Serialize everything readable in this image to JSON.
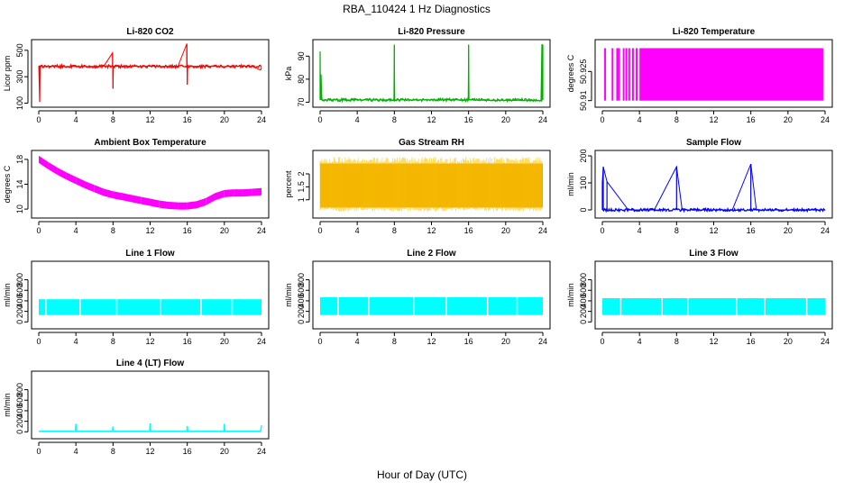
{
  "figure": {
    "title": "RBA_110424  1 Hz Diagnostics",
    "xlabel": "Hour of Day (UTC)"
  },
  "chart_data": [
    {
      "type": "line",
      "title": "Li-820 CO2",
      "ylabel": "Licor ppm",
      "color": "#ff0000",
      "xlim": [
        0,
        24
      ],
      "xticks": [
        0,
        4,
        8,
        12,
        16,
        20,
        24
      ],
      "ylim": [
        90,
        560
      ],
      "yticks": [
        100,
        300,
        500
      ],
      "series": [
        {
          "x": [
            0,
            0.1,
            0.15,
            0.3,
            1,
            2,
            3,
            4,
            5,
            6,
            7,
            7.95,
            8.0,
            8.05,
            8.1,
            9,
            10,
            11,
            12,
            13,
            14,
            15,
            15.95,
            16.0,
            16.05,
            16.1,
            17,
            18,
            19,
            20,
            21,
            22,
            23,
            23.9,
            24
          ],
          "y": [
            380,
            110,
            380,
            375,
            380,
            378,
            376,
            378,
            377,
            379,
            378,
            480,
            210,
            378,
            378,
            380,
            379,
            378,
            380,
            378,
            379,
            380,
            550,
            240,
            378,
            378,
            379,
            380,
            378,
            377,
            379,
            380,
            378,
            350,
            370
          ]
        }
      ]
    },
    {
      "type": "line",
      "title": "Li-820 Pressure",
      "ylabel": "kPa",
      "color": "#00b000",
      "xlim": [
        0,
        24
      ],
      "xticks": [
        0,
        4,
        8,
        12,
        16,
        20,
        24
      ],
      "ylim": [
        69,
        96
      ],
      "yticks": [
        70,
        80,
        90
      ],
      "series": [
        {
          "x": [
            0,
            0.05,
            0.1,
            0.2,
            2,
            4,
            6,
            7.95,
            8.0,
            8.05,
            10,
            12,
            14,
            15.95,
            16.0,
            16.05,
            18,
            20,
            22,
            23.8,
            23.9,
            24
          ],
          "y": [
            92,
            71,
            82,
            71,
            71,
            71,
            71,
            71,
            95,
            71,
            71,
            71,
            71,
            71,
            95,
            71,
            70.8,
            70.8,
            70.7,
            70.7,
            95,
            95
          ]
        }
      ]
    },
    {
      "type": "area",
      "title": "Li-820 Temperature",
      "ylabel": "degrees C",
      "color": "#ff00ff",
      "xlim": [
        0,
        24
      ],
      "xticks": [
        0,
        4,
        8,
        12,
        16,
        20,
        24
      ],
      "ylim": [
        50.908,
        50.94
      ],
      "yticks": [
        50.91,
        50.925
      ],
      "series": [
        {
          "x": [
            0.2,
            1.0,
            1.5,
            1.7,
            2.2,
            2.5,
            2.8,
            3.2,
            3.6,
            4.0
          ],
          "y": [
            50.91,
            50.91,
            50.91,
            50.91,
            50.91,
            50.91,
            50.91,
            50.91,
            50.91,
            50.91
          ]
        }
      ]
    },
    {
      "type": "line",
      "title": "Ambient Box Temperature",
      "ylabel": "degrees C",
      "color": "#ff00ff",
      "xlim": [
        0,
        24
      ],
      "xticks": [
        0,
        4,
        8,
        12,
        16,
        20,
        24
      ],
      "ylim": [
        9,
        19
      ],
      "yticks": [
        10,
        14,
        18
      ],
      "series": [
        {
          "x": [
            0,
            1,
            2,
            3,
            4,
            5,
            6,
            7,
            8,
            9,
            10,
            11,
            12,
            13,
            14,
            15,
            16,
            17,
            18,
            19,
            20,
            21,
            22,
            23,
            24
          ],
          "y": [
            18,
            17,
            16.1,
            15.3,
            14.6,
            13.9,
            13.3,
            12.7,
            12.3,
            12.0,
            11.7,
            11.4,
            11.1,
            10.8,
            10.6,
            10.5,
            10.5,
            10.7,
            11.2,
            12.0,
            12.5,
            12.6,
            12.6,
            12.7,
            12.8
          ]
        }
      ]
    },
    {
      "type": "area",
      "title": "Gas Stream RH",
      "ylabel": "percent",
      "color": "#ffa500",
      "xlim": [
        0,
        24
      ],
      "xticks": [
        0,
        4,
        8,
        12,
        16,
        20,
        24
      ],
      "ylim": [
        0.4,
        2.8
      ],
      "yticks": [
        1.0,
        1.5,
        2.0
      ],
      "series": [
        {
          "x": [
            0,
            4,
            8,
            12,
            16,
            20,
            24
          ],
          "y": [
            2.4,
            2.4,
            2.4,
            2.4,
            2.4,
            2.4,
            2.4
          ]
        }
      ]
    },
    {
      "type": "line",
      "title": "Sample Flow",
      "ylabel": "ml/min",
      "color": "#0000ff",
      "xlim": [
        0,
        24
      ],
      "xticks": [
        0,
        4,
        8,
        12,
        16,
        20,
        24
      ],
      "ylim": [
        -20,
        210
      ],
      "yticks": [
        0,
        100,
        200
      ],
      "series": [
        {
          "x": [
            0,
            0.1,
            0.5,
            2.8,
            4.1,
            5.6,
            8.0,
            8.6,
            10.0,
            11.4,
            12.4,
            14.0,
            16.0,
            16.6,
            18.9,
            20.2,
            21.7,
            23.8,
            24
          ],
          "y": [
            105,
            160,
            105,
            0,
            0,
            0,
            160,
            0,
            0,
            0,
            0,
            0,
            170,
            0,
            0,
            0,
            0,
            0,
            0
          ]
        }
      ]
    },
    {
      "type": "area",
      "title": "Line 1 Flow",
      "ylabel": "ml/min",
      "color": "#00ffff",
      "xlim": [
        0,
        24
      ],
      "xticks": [
        0,
        4,
        8,
        12,
        16,
        20,
        24
      ],
      "ylim": [
        -80,
        1100
      ],
      "yticks": [
        0,
        200,
        400,
        600,
        800
      ],
      "series": [
        {
          "x": [
            0,
            4,
            8,
            12,
            16,
            20,
            24
          ],
          "y": [
            430,
            430,
            430,
            430,
            430,
            430,
            430
          ]
        }
      ]
    },
    {
      "type": "area",
      "title": "Line 2 Flow",
      "ylabel": "ml/min",
      "color": "#00ffff",
      "xlim": [
        0,
        24
      ],
      "xticks": [
        0,
        4,
        8,
        12,
        16,
        20,
        24
      ],
      "ylim": [
        -80,
        1100
      ],
      "yticks": [
        0,
        200,
        400,
        600,
        800
      ],
      "series": [
        {
          "x": [
            0,
            4,
            8,
            12,
            16,
            20,
            24
          ],
          "y": [
            470,
            470,
            470,
            470,
            470,
            470,
            470
          ]
        }
      ]
    },
    {
      "type": "area",
      "title": "Line 3 Flow",
      "ylabel": "ml/min",
      "color": "#00ffff",
      "xlim": [
        0,
        24
      ],
      "xticks": [
        0,
        4,
        8,
        12,
        16,
        20,
        24
      ],
      "ylim": [
        -80,
        1100
      ],
      "yticks": [
        0,
        200,
        400,
        600,
        800
      ],
      "series": [
        {
          "x": [
            0,
            4,
            8,
            12,
            16,
            20,
            24
          ],
          "y": [
            450,
            450,
            450,
            450,
            450,
            450,
            450
          ]
        }
      ]
    },
    {
      "type": "line",
      "title": "Line 4 (LT) Flow",
      "ylabel": "ml/min",
      "color": "#00ffff",
      "xlim": [
        0,
        24
      ],
      "xticks": [
        0,
        4,
        8,
        12,
        16,
        20,
        24
      ],
      "ylim": [
        -80,
        1100
      ],
      "yticks": [
        0,
        200,
        400,
        600,
        800
      ],
      "series": [
        {
          "x": [
            0,
            3.95,
            4.0,
            4.05,
            7.95,
            8.0,
            8.05,
            11.95,
            12.0,
            12.05,
            15.95,
            16.0,
            16.05,
            19.95,
            20.0,
            20.05,
            23.9,
            24
          ],
          "y": [
            10,
            10,
            150,
            10,
            10,
            100,
            10,
            10,
            160,
            10,
            10,
            110,
            10,
            10,
            150,
            10,
            10,
            120
          ]
        }
      ]
    }
  ]
}
